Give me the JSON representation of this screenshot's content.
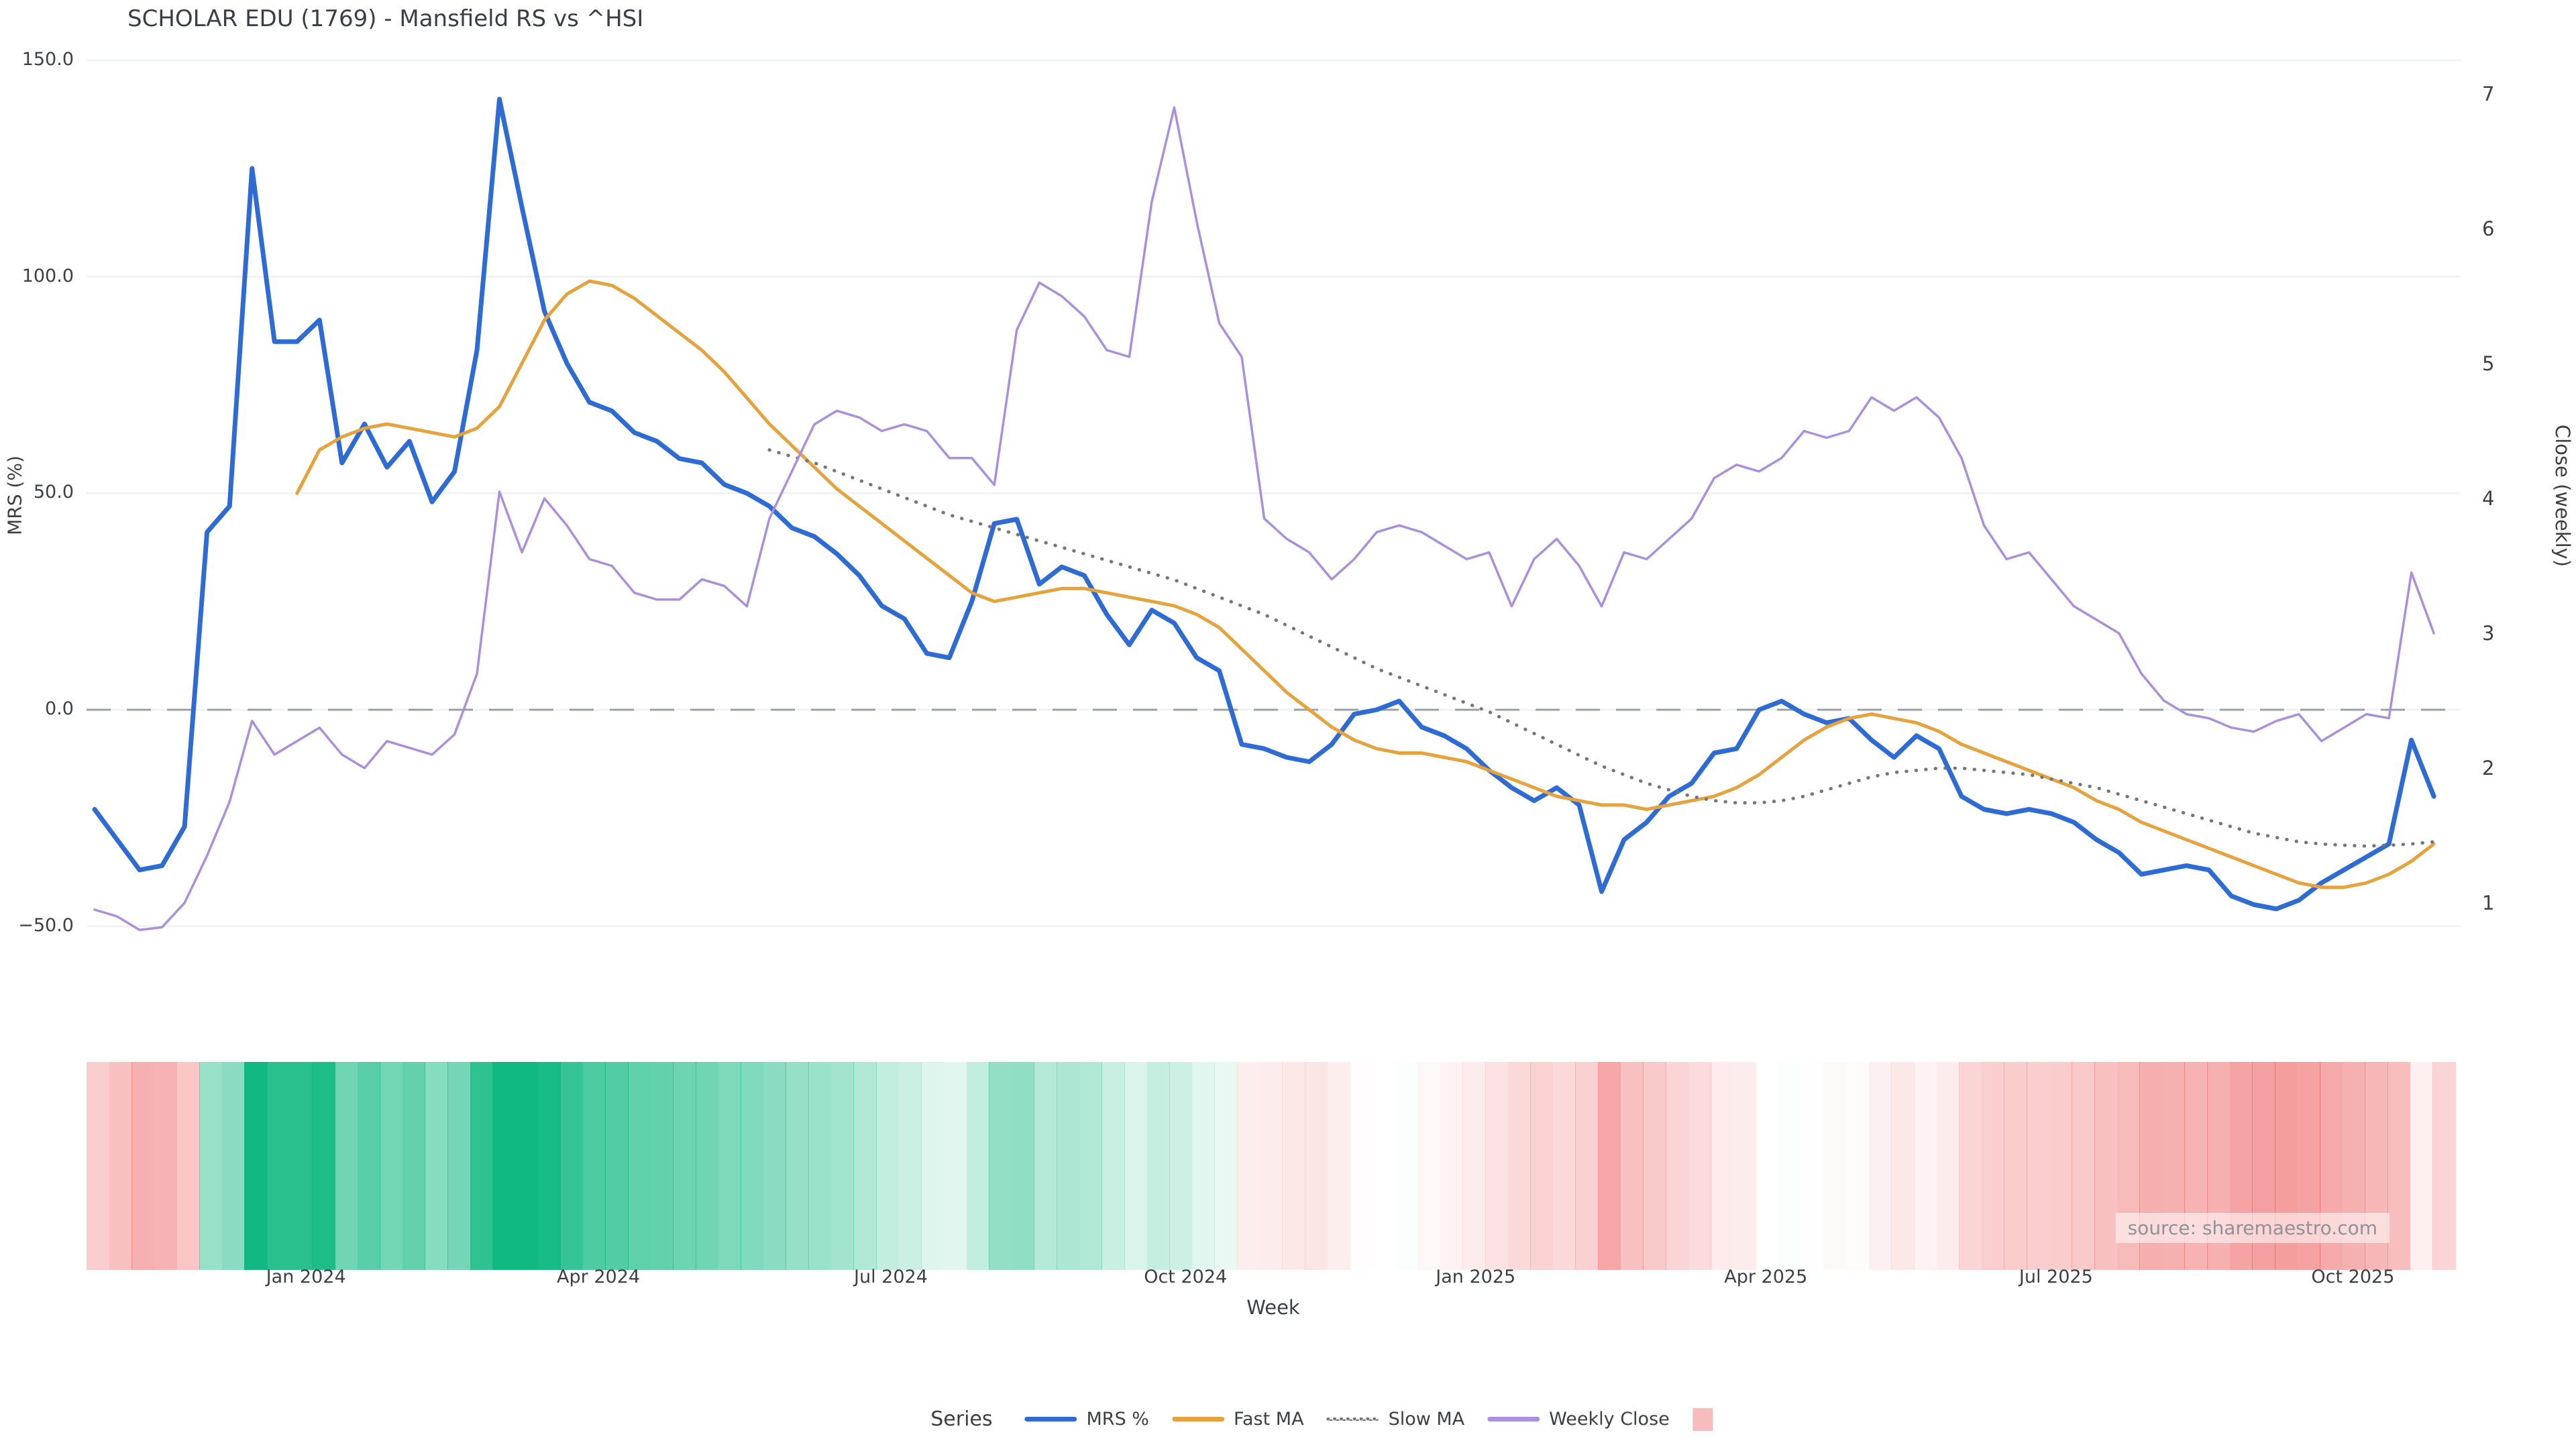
{
  "title": "SCHOLAR EDU (1769) - Mansfield RS vs ^HSI",
  "source": "source: sharemaestro.com",
  "axes": {
    "left": {
      "label": "MRS (%)",
      "ticks": [
        {
          "label": "150.0",
          "value": 150
        },
        {
          "label": "100.0",
          "value": 100
        },
        {
          "label": "50.0",
          "value": 50
        },
        {
          "label": "0.0",
          "value": 0
        },
        {
          "label": "−50.0",
          "value": -50
        }
      ]
    },
    "right": {
      "label": "Close (weekly)",
      "ticks": [
        {
          "label": "7",
          "value": 7
        },
        {
          "label": "6",
          "value": 6
        },
        {
          "label": "5",
          "value": 5
        },
        {
          "label": "4",
          "value": 4
        },
        {
          "label": "3",
          "value": 3
        },
        {
          "label": "2",
          "value": 2
        },
        {
          "label": "1",
          "value": 1
        }
      ]
    },
    "x": {
      "label": "Week",
      "ticks": [
        {
          "label": "Jan 2024",
          "week": 9.4
        },
        {
          "label": "Apr 2024",
          "week": 22.4
        },
        {
          "label": "Jul 2024",
          "week": 35.4
        },
        {
          "label": "Oct 2024",
          "week": 48.5
        },
        {
          "label": "Jan 2025",
          "week": 61.4
        },
        {
          "label": "Apr 2025",
          "week": 74.3
        },
        {
          "label": "Jul 2025",
          "week": 87.2
        },
        {
          "label": "Oct 2025",
          "week": 100.4
        }
      ]
    }
  },
  "legend": {
    "title": "Series",
    "entries": [
      {
        "label": "MRS %",
        "type": "line",
        "color": "#2e6bd3"
      },
      {
        "label": "Fast MA",
        "type": "line",
        "color": "#e6a23c"
      },
      {
        "label": "Slow MA",
        "type": "dotted",
        "color": "#777777"
      },
      {
        "label": "Weekly Close",
        "type": "line",
        "color": "#ab8fdc"
      },
      {
        "label": "",
        "type": "swatch",
        "color": "#f6bcbe"
      }
    ]
  },
  "chart_data": {
    "type": "line",
    "title": "SCHOLAR EDU (1769) - Mansfield RS vs ^HSI",
    "xlabel": "Week",
    "x_axis": {
      "unit": "weekly",
      "n_points": 105,
      "tick_labels": [
        "Jan 2024",
        "Apr 2024",
        "Jul 2024",
        "Oct 2024",
        "Jan 2025",
        "Apr 2025",
        "Jul 2025",
        "Oct 2025"
      ]
    },
    "left_axis": {
      "label": "MRS (%)",
      "ylim": [
        -50,
        150
      ],
      "grid": true,
      "zero_line": "dashed"
    },
    "right_axis": {
      "label": "Close (weekly)",
      "ylim": [
        1,
        7
      ]
    },
    "legend_position": "bottom-center",
    "series": [
      {
        "name": "MRS %",
        "axis": "left",
        "color": "#2e6bd3",
        "style": "solid",
        "width": 7,
        "start_week": 0,
        "values": [
          -23,
          -30,
          -37,
          -36,
          -27,
          41,
          47,
          125,
          85,
          85,
          90,
          57,
          66,
          56,
          62,
          48,
          55,
          83,
          141,
          116,
          92,
          80,
          71,
          69,
          64,
          62,
          58,
          57,
          52,
          50,
          47,
          42,
          40,
          36,
          31,
          24,
          21,
          13,
          12,
          25,
          43,
          44,
          29,
          33,
          31,
          22,
          15,
          23,
          20,
          12,
          9,
          -8,
          -9,
          -11,
          -12,
          -8,
          -1,
          0,
          2,
          -4,
          -6,
          -9,
          -14,
          -18,
          -21,
          -18,
          -22,
          -42,
          -30,
          -26,
          -20,
          -17,
          -10,
          -9,
          0,
          2,
          -1,
          -3,
          -2,
          -7,
          -11,
          -6,
          -9,
          -20,
          -23,
          -24,
          -23,
          -24,
          -26,
          -30,
          -33,
          -38,
          -37,
          -36,
          -37,
          -43,
          -45,
          -46,
          -44,
          -40,
          -37,
          -34,
          -31,
          -7,
          -20
        ]
      },
      {
        "name": "Fast MA",
        "axis": "left",
        "color": "#e6a23c",
        "style": "solid",
        "width": 5,
        "start_week": 9,
        "values": [
          50,
          60,
          63,
          65,
          66,
          65,
          64,
          63,
          65,
          70,
          80,
          90,
          96,
          99,
          98,
          95,
          91,
          87,
          83,
          78,
          72,
          66,
          61,
          56,
          51,
          47,
          43,
          39,
          35,
          31,
          27,
          25,
          26,
          27,
          28,
          28,
          27,
          26,
          25,
          24,
          22,
          19,
          14,
          9,
          4,
          0,
          -4,
          -7,
          -9,
          -10,
          -10,
          -11,
          -12,
          -14,
          -16,
          -18,
          -20,
          -21,
          -22,
          -22,
          -23,
          -22,
          -21,
          -20,
          -18,
          -15,
          -11,
          -7,
          -4,
          -2,
          -1,
          -2,
          -3,
          -5,
          -8,
          -10,
          -12,
          -14,
          -16,
          -18,
          -21,
          -23,
          -26,
          -28,
          -30,
          -32,
          -34,
          -36,
          -38,
          -40,
          -41,
          -41,
          -40,
          -38,
          -35,
          -31
        ]
      },
      {
        "name": "Slow MA",
        "axis": "left",
        "color": "#777777",
        "style": "dotted",
        "width": 4,
        "start_week": 30,
        "values": [
          60,
          58.5,
          57,
          55,
          53,
          51,
          49,
          47,
          45,
          43.5,
          42,
          40.5,
          39,
          37.5,
          36,
          34.5,
          33,
          31.5,
          30,
          28,
          26,
          24,
          22,
          19.5,
          17,
          14.5,
          12,
          9.5,
          7.5,
          5.5,
          3.5,
          1.5,
          -0.5,
          -3,
          -5.5,
          -8,
          -10.5,
          -13,
          -15,
          -17,
          -18.5,
          -20,
          -21,
          -21.5,
          -21.5,
          -21,
          -20,
          -18.5,
          -17,
          -15.5,
          -14.5,
          -14,
          -13.5,
          -13.5,
          -14,
          -14.5,
          -15,
          -16,
          -17,
          -18,
          -19.5,
          -21,
          -22.5,
          -24,
          -25.5,
          -27,
          -28.5,
          -29.5,
          -30.5,
          -31,
          -31.3,
          -31.5,
          -31.3,
          -31,
          -30.5
        ]
      },
      {
        "name": "Weekly Close",
        "axis": "right",
        "color": "#ab8fdc",
        "style": "solid",
        "width": 3.5,
        "start_week": 0,
        "values": [
          0.95,
          0.9,
          0.8,
          0.82,
          1.0,
          1.35,
          1.75,
          2.35,
          2.1,
          2.2,
          2.3,
          2.1,
          2.0,
          2.2,
          2.15,
          2.1,
          2.25,
          2.7,
          4.05,
          3.6,
          4.0,
          3.8,
          3.55,
          3.5,
          3.3,
          3.25,
          3.25,
          3.4,
          3.35,
          3.2,
          3.85,
          4.2,
          4.55,
          4.65,
          4.6,
          4.5,
          4.55,
          4.5,
          4.3,
          4.3,
          4.1,
          5.25,
          5.6,
          5.5,
          5.35,
          5.1,
          5.05,
          6.2,
          6.9,
          6.05,
          5.3,
          5.05,
          3.85,
          3.7,
          3.6,
          3.4,
          3.55,
          3.75,
          3.8,
          3.75,
          3.65,
          3.55,
          3.6,
          3.2,
          3.55,
          3.7,
          3.5,
          3.2,
          3.6,
          3.55,
          3.7,
          3.85,
          4.15,
          4.25,
          4.2,
          4.3,
          4.5,
          4.45,
          4.5,
          4.75,
          4.65,
          4.75,
          4.6,
          4.3,
          3.8,
          3.55,
          3.6,
          3.4,
          3.2,
          3.1,
          3.0,
          2.7,
          2.5,
          2.4,
          2.37,
          2.3,
          2.27,
          2.35,
          2.4,
          2.2,
          2.3,
          2.4,
          2.37,
          3.45,
          3.0
        ]
      }
    ],
    "heatmap": {
      "description": "weekly color strip below chart, green for positive MRS, red/pink for negative MRS, intensity scales with magnitude",
      "source_series": "MRS %",
      "positive_color": "#10b981",
      "negative_color": "#ee5c5c"
    }
  }
}
